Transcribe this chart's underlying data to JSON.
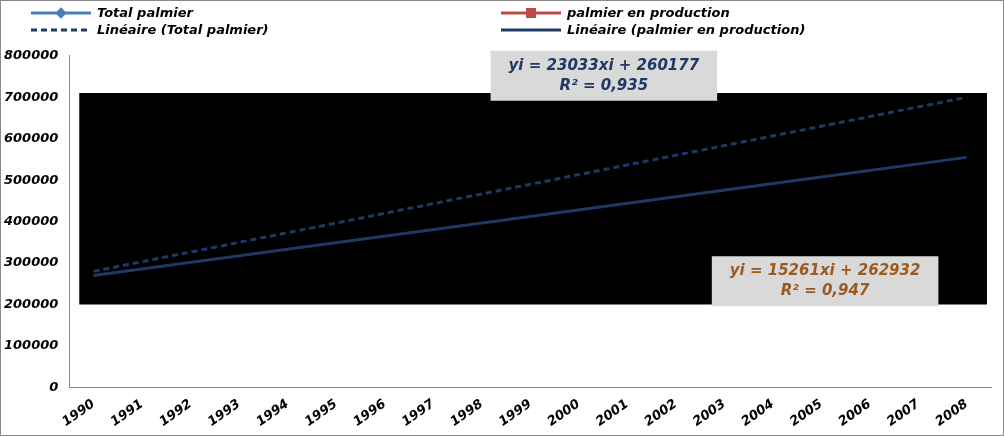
{
  "chart_data": {
    "type": "line",
    "categories": [
      "1990",
      "1991",
      "1992",
      "1993",
      "1994",
      "1995",
      "1996",
      "1997",
      "1998",
      "1999",
      "2000",
      "2001",
      "2002",
      "2003",
      "2004",
      "2005",
      "2006",
      "2007",
      "2008"
    ],
    "series": [
      {
        "name": "Total palmier",
        "color": "#4a7ebb",
        "marker": "diamond",
        "line_style": "solid",
        "values": [
          null,
          null,
          null,
          null,
          null,
          null,
          null,
          null,
          null,
          null,
          null,
          null,
          null,
          null,
          null,
          null,
          null,
          null,
          null
        ]
      },
      {
        "name": "palmier en production",
        "color": "#be4b48",
        "marker": "square",
        "line_style": "solid",
        "values": [
          null,
          null,
          null,
          null,
          null,
          null,
          null,
          null,
          null,
          null,
          null,
          null,
          null,
          null,
          null,
          null,
          null,
          null,
          null
        ]
      },
      {
        "name": "Linéaire (Total palmier)",
        "color": "#1f3864",
        "marker": "none",
        "line_style": "dashed",
        "values": [
          280000,
          null,
          null,
          null,
          null,
          null,
          null,
          null,
          null,
          null,
          null,
          null,
          null,
          null,
          null,
          null,
          null,
          null,
          700000
        ]
      },
      {
        "name": "Linéaire (palmier en production)",
        "color": "#1f3864",
        "marker": "none",
        "line_style": "solid",
        "values": [
          270000,
          null,
          null,
          null,
          null,
          null,
          null,
          null,
          null,
          null,
          null,
          null,
          null,
          null,
          null,
          null,
          null,
          null,
          555000
        ]
      }
    ],
    "ylim": [
      0,
      800000
    ],
    "yticks": [
      0,
      100000,
      200000,
      300000,
      400000,
      500000,
      600000,
      700000,
      800000
    ],
    "bands": [
      {
        "axis": "y",
        "from": 200000,
        "to": 710000,
        "color": "#000000"
      }
    ],
    "annotations": [
      "yi = 23033xi + 260177\nR² = 0,935",
      "yi = 15261xi + 262932\nR² = 0,947"
    ],
    "legend": "top",
    "grid": false
  }
}
